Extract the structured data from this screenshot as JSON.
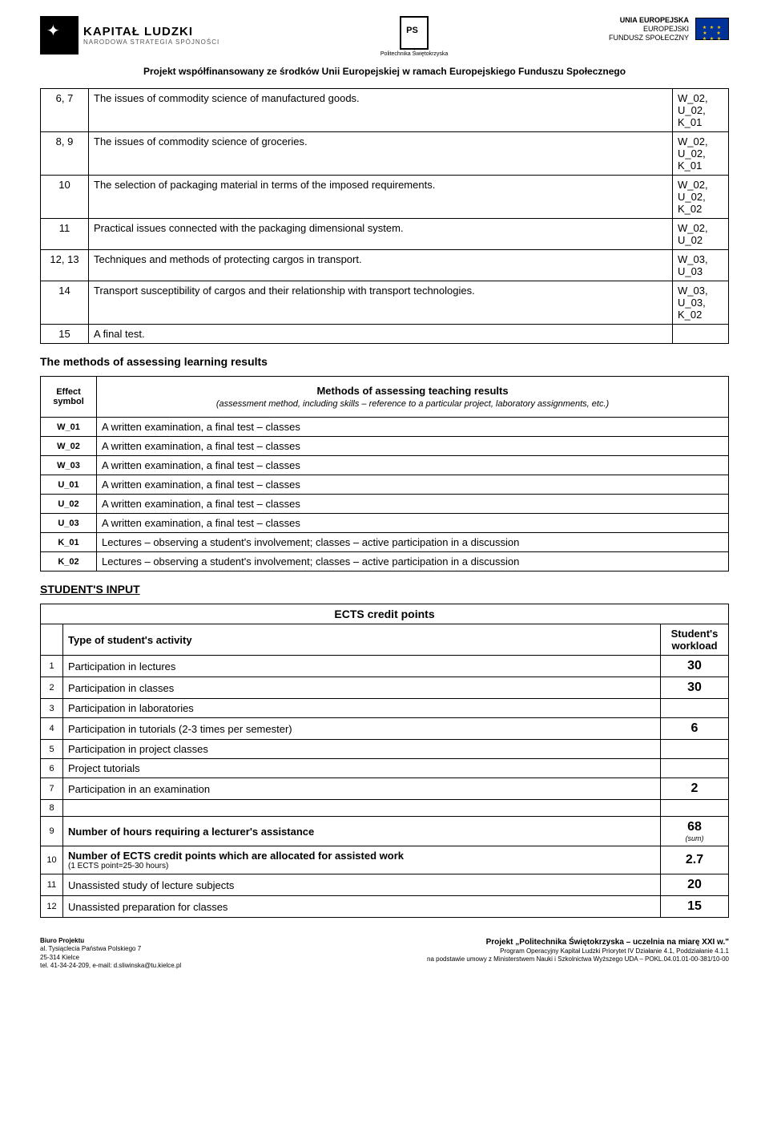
{
  "header": {
    "kl_title": "KAPITAŁ LUDZKI",
    "kl_sub": "NARODOWA STRATEGIA SPÓJNOŚCI",
    "ps_label": "Politechnika Świętokrzyska",
    "eu_line1": "UNIA EUROPEJSKA",
    "eu_line2": "EUROPEJSKI",
    "eu_line3": "FUNDUSZ SPOŁECZNY",
    "project_line": "Projekt współfinansowany ze środków Unii Europejskiej w ramach Europejskiego Funduszu Społecznego"
  },
  "outcomes": [
    {
      "no": "6, 7",
      "desc": "The issues of commodity science of manufactured goods.",
      "codes": "W_02,\nU_02,\nK_01"
    },
    {
      "no": "8, 9",
      "desc": "The issues of commodity science of groceries.",
      "codes": "W_02,\nU_02,\nK_01"
    },
    {
      "no": "10",
      "desc": "The selection of packaging material in terms of the imposed requirements.",
      "codes": "W_02,\nU_02,\nK_02"
    },
    {
      "no": "11",
      "desc": "Practical issues connected with the packaging dimensional system.",
      "codes": "W_02,\nU_02"
    },
    {
      "no": "12, 13",
      "desc": "Techniques and methods of protecting cargos in transport.",
      "codes": "W_03,\nU_03"
    },
    {
      "no": "14",
      "desc": "Transport susceptibility of cargos and their relationship with transport technologies.",
      "codes": "W_03,\nU_03,\nK_02"
    },
    {
      "no": "15",
      "desc": "A final test.",
      "codes": ""
    }
  ],
  "methods_heading": "The methods of assessing learning results",
  "methods_head_left": "Effect symbol",
  "methods_head_right": "Methods of assessing teaching results",
  "methods_head_sub": "(assessment method, including skills – reference to a particular project, laboratory assignments, etc.)",
  "methods": [
    {
      "sym": "W_01",
      "txt": "A written examination, a final test – classes"
    },
    {
      "sym": "W_02",
      "txt": "A written examination, a final test – classes"
    },
    {
      "sym": "W_03",
      "txt": "A written examination, a final test – classes"
    },
    {
      "sym": "U_01",
      "txt": "A written examination, a final test – classes"
    },
    {
      "sym": "U_02",
      "txt": "A written examination, a final test – classes"
    },
    {
      "sym": "U_03",
      "txt": "A written examination, a final test – classes"
    },
    {
      "sym": "K_01",
      "txt": "Lectures – observing a student's involvement; classes – active participation in a discussion"
    },
    {
      "sym": "K_02",
      "txt": "Lectures – observing a student's involvement; classes – active participation in a discussion"
    }
  ],
  "student_input_heading": "STUDENT'S INPUT",
  "ects_title": "ECTS credit points",
  "ects_type_label": "Type of student's activity",
  "ects_workload_label": "Student's workload",
  "ects": [
    {
      "no": "1",
      "txt": "Participation in lectures",
      "val": "30"
    },
    {
      "no": "2",
      "txt": "Participation in classes",
      "val": "30"
    },
    {
      "no": "3",
      "txt": "Participation in laboratories",
      "val": ""
    },
    {
      "no": "4",
      "txt": "Participation in tutorials (2-3 times per semester)",
      "val": "6"
    },
    {
      "no": "5",
      "txt": "Participation in project classes",
      "val": ""
    },
    {
      "no": "6",
      "txt": "Project tutorials",
      "val": ""
    },
    {
      "no": "7",
      "txt": "Participation in an examination",
      "val": "2"
    },
    {
      "no": "8",
      "txt": "",
      "val": ""
    }
  ],
  "ects_row9": {
    "no": "9",
    "txt": "Number of hours requiring a lecturer's assistance",
    "val": "68",
    "sum": "(sum)"
  },
  "ects_row10": {
    "no": "10",
    "txt": "Number of ECTS credit points which are allocated for assisted work",
    "sub": "(1 ECTS point=25-30 hours)",
    "val": "2.7"
  },
  "ects_row11": {
    "no": "11",
    "txt": "Unassisted study of lecture subjects",
    "val": "20"
  },
  "ects_row12": {
    "no": "12",
    "txt": "Unassisted preparation for classes",
    "val": "15"
  },
  "footer": {
    "left_title": "Biuro Projektu",
    "left_l1": "al. Tysiąclecia Państwa Polskiego 7",
    "left_l2": "25-314 Kielce",
    "left_l3": "tel. 41-34-24-209, e-mail: d.sliwinska@tu.kielce.pl",
    "right_title": "Projekt „Politechnika Świętokrzyska – uczelnia na miarę XXI w.\"",
    "right_l1": "Program Operacyjny Kapitał Ludzki Priorytet IV Działanie 4.1, Poddziałanie 4.1.1",
    "right_l2": "na podstawie umowy z Ministerstwem Nauki i Szkolnictwa Wyższego UDA – POKL.04.01.01-00-381/10-00"
  }
}
